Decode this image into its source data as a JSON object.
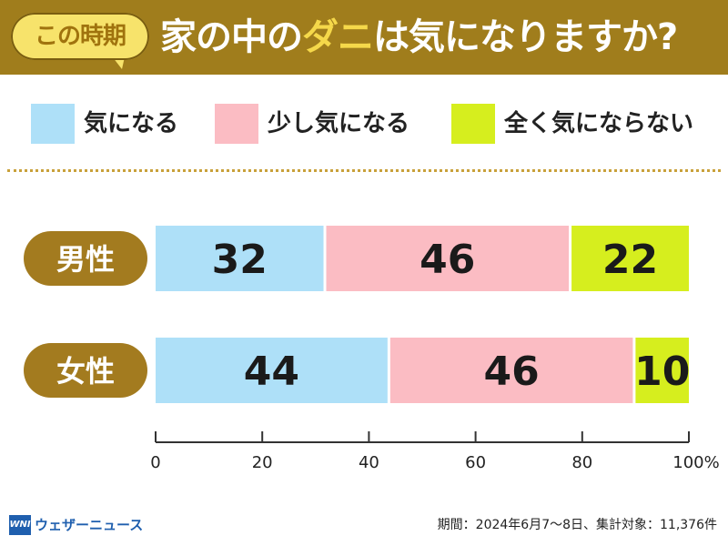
{
  "header": {
    "badge": "この時期",
    "title_pre": "家の中の",
    "title_highlight": "ダニ",
    "title_post": "は気になりますか?"
  },
  "colors": {
    "header_bg": "#a07d1c",
    "badge_bg": "#f7e36b",
    "row_label_bg": "#a37b1f",
    "series_1": "#aee0f8",
    "series_2": "#fbbcc3",
    "series_3": "#d6ee1e"
  },
  "chart_data": {
    "type": "bar",
    "orientation": "horizontal",
    "stacked": true,
    "title": "家の中のダニは気になりますか?",
    "categories": [
      "男性",
      "女性"
    ],
    "series": [
      {
        "name": "気になる",
        "values": [
          32,
          44
        ]
      },
      {
        "name": "少し気になる",
        "values": [
          46,
          46
        ]
      },
      {
        "name": "全く気にならない",
        "values": [
          22,
          10
        ]
      }
    ],
    "xlim": [
      0,
      100
    ],
    "xticks": [
      0,
      20,
      40,
      60,
      80,
      100
    ],
    "xtick_labels": [
      "0",
      "20",
      "40",
      "60",
      "80",
      "100%"
    ],
    "legend_position": "top",
    "grid": false
  },
  "footer": {
    "logo_mark": "WNI",
    "logo_text": "ウェザーニュース",
    "note": "期間：2024年6月7～8日、集計対象：11,376件"
  }
}
